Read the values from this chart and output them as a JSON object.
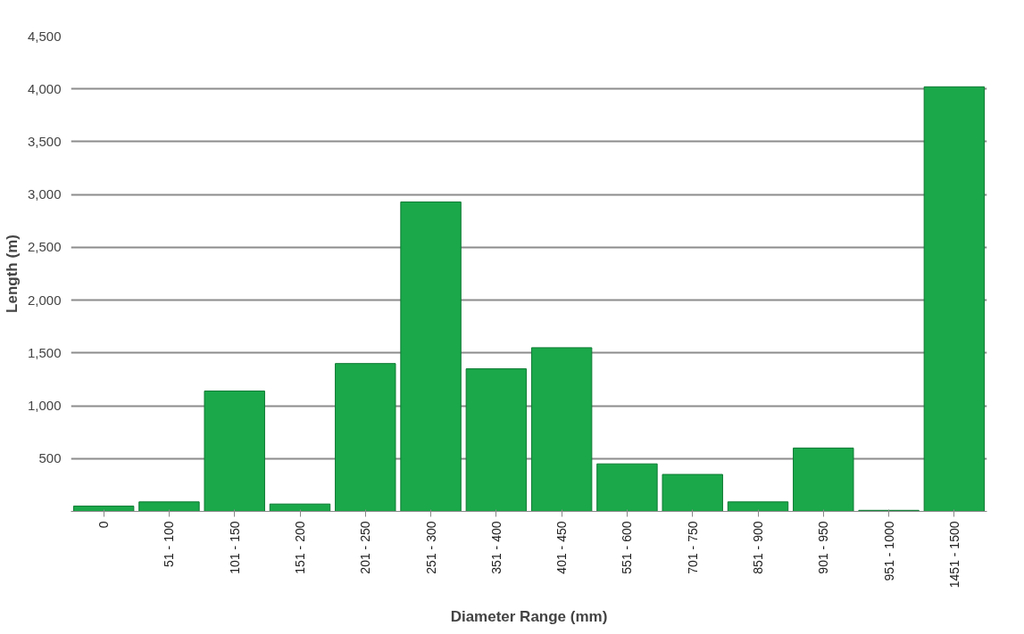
{
  "chart_data": {
    "type": "bar",
    "xlabel": "Diameter Range (mm)",
    "ylabel": "Length (m)",
    "categories": [
      "0",
      "51 - 100",
      "101 - 150",
      "151 - 200",
      "201 - 250",
      "251 - 300",
      "351 - 400",
      "401 - 450",
      "551 - 600",
      "701 - 750",
      "851 - 900",
      "901 - 950",
      "951 - 1000",
      "1451 - 1500"
    ],
    "values": [
      50,
      90,
      1140,
      70,
      1400,
      2930,
      1350,
      1550,
      450,
      350,
      90,
      600,
      10,
      4020
    ],
    "color": "#1aa84a",
    "ylim": [
      0,
      4500
    ],
    "yticks": [
      {
        "value": 0,
        "label": null
      },
      500,
      {
        "value": 1000,
        "label": "1,000"
      },
      {
        "value": 1500,
        "label": "1,500"
      },
      {
        "value": 2000,
        "label": "2,000"
      },
      {
        "value": 2500,
        "label": "2,500"
      },
      {
        "value": 3000,
        "label": "3,000"
      },
      {
        "value": 3500,
        "label": "3,500"
      },
      {
        "value": 4000,
        "label": "4,000"
      },
      {
        "value": 4500,
        "label": "4,500"
      }
    ],
    "grid": "y"
  }
}
